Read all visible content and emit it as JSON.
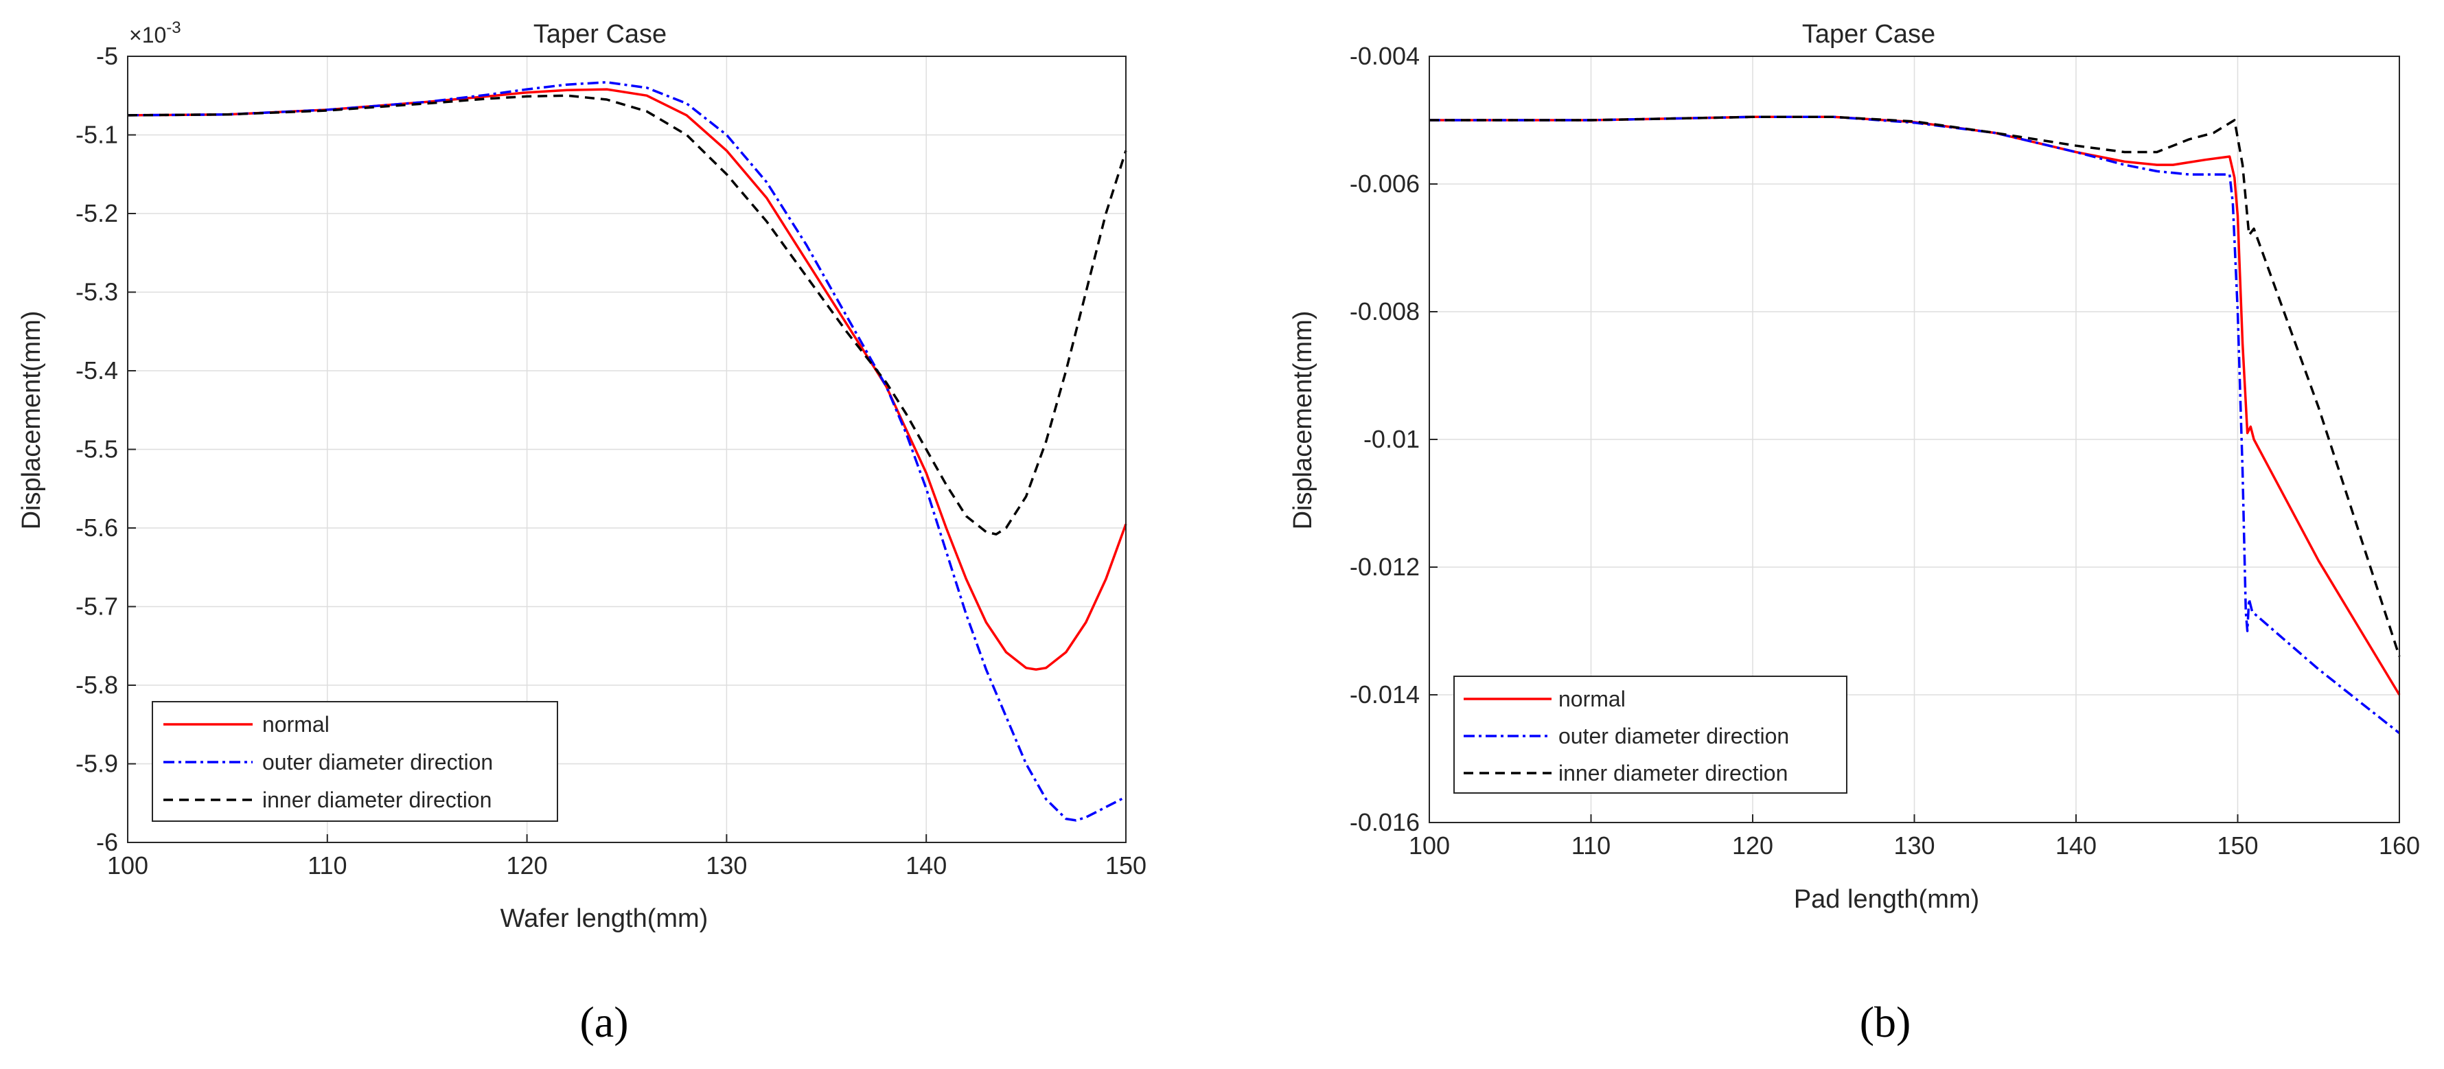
{
  "chart_data": [
    {
      "type": "line",
      "title": "Taper Case",
      "xlabel": "Wafer length(mm)",
      "ylabel": "Displacement(mm)",
      "panel_label": "(a)",
      "xlim": [
        100,
        150
      ],
      "ylim": [
        -6.0,
        -5.0
      ],
      "y_multiplier": "×10",
      "y_multiplier_exp": "-3",
      "xticks": [
        100,
        110,
        120,
        130,
        140,
        150
      ],
      "xtick_labels": [
        "100",
        "110",
        "120",
        "130",
        "140",
        "150"
      ],
      "yticks": [
        -5.0,
        -5.1,
        -5.2,
        -5.3,
        -5.4,
        -5.5,
        -5.6,
        -5.7,
        -5.8,
        -5.9,
        -6.0
      ],
      "ytick_labels": [
        "-5",
        "-5.1",
        "-5.2",
        "-5.3",
        "-5.4",
        "-5.5",
        "-5.6",
        "-5.7",
        "-5.8",
        "-5.9",
        "-6"
      ],
      "grid": true,
      "legend_position": "bottom-left",
      "series": [
        {
          "name": "normal",
          "color": "#ff0000",
          "style": "solid",
          "x": [
            100,
            105,
            110,
            115,
            118,
            120,
            122,
            124,
            126,
            128,
            130,
            132,
            134,
            136,
            138,
            139,
            140,
            141,
            142,
            143,
            144,
            145,
            145.5,
            146,
            147,
            148,
            149,
            150
          ],
          "y": [
            -5.075,
            -5.074,
            -5.068,
            -5.058,
            -5.051,
            -5.046,
            -5.043,
            -5.042,
            -5.05,
            -5.075,
            -5.12,
            -5.18,
            -5.26,
            -5.34,
            -5.42,
            -5.475,
            -5.53,
            -5.6,
            -5.665,
            -5.72,
            -5.758,
            -5.778,
            -5.78,
            -5.778,
            -5.758,
            -5.72,
            -5.665,
            -5.595
          ]
        },
        {
          "name": "outer diameter direction",
          "color": "#0000ff",
          "style": "dashdot",
          "x": [
            100,
            105,
            110,
            115,
            118,
            120,
            122,
            124,
            126,
            128,
            130,
            132,
            134,
            136,
            138,
            139,
            140,
            141,
            142,
            143,
            144,
            145,
            146,
            147,
            147.5,
            148,
            149,
            150
          ],
          "y": [
            -5.075,
            -5.074,
            -5.068,
            -5.058,
            -5.049,
            -5.042,
            -5.036,
            -5.033,
            -5.04,
            -5.06,
            -5.1,
            -5.16,
            -5.24,
            -5.33,
            -5.42,
            -5.48,
            -5.55,
            -5.63,
            -5.71,
            -5.78,
            -5.84,
            -5.9,
            -5.945,
            -5.97,
            -5.972,
            -5.968,
            -5.955,
            -5.942
          ]
        },
        {
          "name": "inner diameter direction",
          "color": "#000000",
          "style": "dashed",
          "x": [
            100,
            105,
            110,
            115,
            118,
            120,
            122,
            124,
            126,
            128,
            130,
            132,
            134,
            136,
            138,
            139,
            140,
            141,
            142,
            143,
            143.5,
            144,
            145,
            146,
            147,
            148,
            149,
            150
          ],
          "y": [
            -5.075,
            -5.074,
            -5.069,
            -5.06,
            -5.054,
            -5.051,
            -5.05,
            -5.055,
            -5.07,
            -5.1,
            -5.15,
            -5.21,
            -5.28,
            -5.35,
            -5.415,
            -5.455,
            -5.5,
            -5.545,
            -5.585,
            -5.605,
            -5.608,
            -5.6,
            -5.56,
            -5.49,
            -5.4,
            -5.3,
            -5.2,
            -5.12
          ]
        }
      ]
    },
    {
      "type": "line",
      "title": "Taper Case",
      "xlabel": "Pad length(mm)",
      "ylabel": "Displacement(mm)",
      "panel_label": "(b)",
      "xlim": [
        100,
        160
      ],
      "ylim": [
        -0.016,
        -0.004
      ],
      "xticks": [
        100,
        110,
        120,
        130,
        140,
        150,
        160
      ],
      "xtick_labels": [
        "100",
        "110",
        "120",
        "130",
        "140",
        "150",
        "160"
      ],
      "yticks": [
        -0.004,
        -0.006,
        -0.008,
        -0.01,
        -0.012,
        -0.014,
        -0.016
      ],
      "ytick_labels": [
        "-0.004",
        "-0.006",
        "-0.008",
        "-0.01",
        "-0.012",
        "-0.014",
        "-0.016"
      ],
      "grid": true,
      "legend_position": "bottom-left",
      "series": [
        {
          "name": "normal",
          "color": "#ff0000",
          "style": "solid",
          "x": [
            100,
            110,
            120,
            125,
            130,
            135,
            140,
            143,
            145,
            146,
            148,
            149.5,
            149.8,
            150,
            150.3,
            150.6,
            150.8,
            151,
            155,
            160
          ],
          "y": [
            -0.005,
            -0.005,
            -0.00495,
            -0.00495,
            -0.00503,
            -0.0052,
            -0.0055,
            -0.00565,
            -0.0057,
            -0.0057,
            -0.00562,
            -0.00557,
            -0.0059,
            -0.0065,
            -0.0085,
            -0.0099,
            -0.0098,
            -0.01,
            -0.0119,
            -0.014
          ]
        },
        {
          "name": "outer diameter direction",
          "color": "#0000ff",
          "style": "dashdot",
          "x": [
            100,
            110,
            120,
            125,
            130,
            135,
            140,
            143,
            145,
            147,
            149.5,
            149.7,
            150,
            150.3,
            150.5,
            150.6,
            150.7,
            150.9,
            155,
            160
          ],
          "y": [
            -0.005,
            -0.005,
            -0.00495,
            -0.00495,
            -0.00504,
            -0.0052,
            -0.0055,
            -0.0057,
            -0.0058,
            -0.00585,
            -0.00585,
            -0.0063,
            -0.008,
            -0.0105,
            -0.0127,
            -0.013,
            -0.0125,
            -0.0127,
            -0.0136,
            -0.0146
          ]
        },
        {
          "name": "inner diameter direction",
          "color": "#000000",
          "style": "dashed",
          "x": [
            100,
            110,
            120,
            125,
            130,
            135,
            140,
            143,
            145,
            147,
            148.5,
            149.8,
            150.3,
            150.7,
            151,
            155,
            160
          ],
          "y": [
            -0.005,
            -0.005,
            -0.00495,
            -0.00495,
            -0.00502,
            -0.0052,
            -0.0054,
            -0.0055,
            -0.0055,
            -0.0053,
            -0.0052,
            -0.005,
            -0.0057,
            -0.0068,
            -0.0067,
            -0.0095,
            -0.0134
          ]
        }
      ]
    }
  ]
}
